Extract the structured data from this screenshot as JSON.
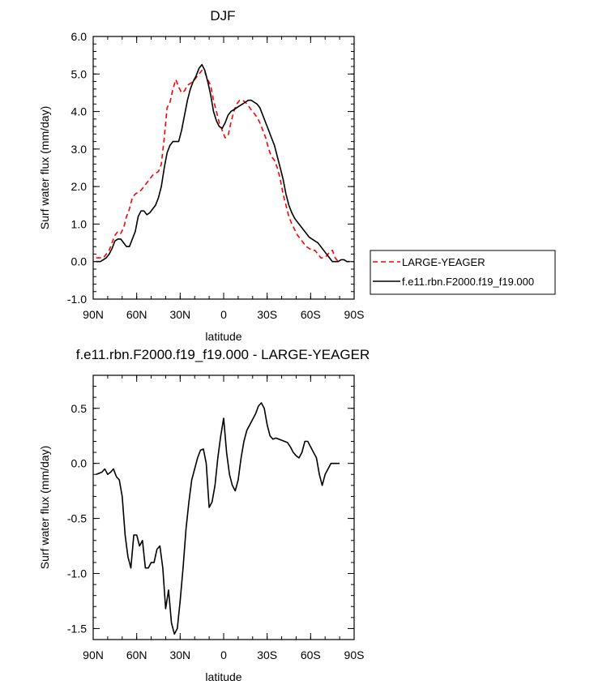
{
  "chart_data": [
    {
      "type": "line",
      "title": "DJF",
      "xlabel": "latitude",
      "ylabel": "Surf water flux (mm/day)",
      "xlim": [
        -90,
        90
      ],
      "ylim": [
        -1.0,
        6.0
      ],
      "x_ticks": [
        "90N",
        "60N",
        "30N",
        "0",
        "30S",
        "60S",
        "90S"
      ],
      "y_ticks": [
        "-1.0",
        "0.0",
        "1.0",
        "2.0",
        "3.0",
        "4.0",
        "5.0",
        "6.0"
      ],
      "legend_position": "right",
      "series": [
        {
          "name": "LARGE-YEAGER",
          "color": "#ff0000",
          "style": "dashed",
          "x": [
            -88,
            -85,
            -83,
            -81,
            -79,
            -77,
            -75,
            -73,
            -71,
            -69,
            -67,
            -65,
            -63,
            -61,
            -59,
            -57,
            -55,
            -53,
            -51,
            -49,
            -47,
            -45,
            -43,
            -41,
            -39,
            -37,
            -35,
            -33,
            -31,
            -29,
            -27,
            -25,
            -23,
            -21,
            -19,
            -17,
            -15,
            -13,
            -11,
            -9,
            -7,
            -5,
            -3,
            -1,
            1,
            3,
            5,
            7,
            9,
            11,
            13,
            15,
            17,
            19,
            21,
            23,
            25,
            27,
            29,
            31,
            33,
            35,
            37,
            39,
            41,
            43,
            45,
            47,
            49,
            51,
            53,
            55,
            57,
            59,
            61,
            63,
            65,
            67,
            69,
            71,
            73,
            75,
            77,
            79
          ],
          "y": [
            0.1,
            0.1,
            0.1,
            0.2,
            0.3,
            0.5,
            0.7,
            0.8,
            0.75,
            0.9,
            1.2,
            1.4,
            1.7,
            1.8,
            1.85,
            1.9,
            2.0,
            2.1,
            2.2,
            2.3,
            2.35,
            2.4,
            2.6,
            3.3,
            4.1,
            4.25,
            4.6,
            4.85,
            4.65,
            4.5,
            4.55,
            4.7,
            4.75,
            4.8,
            4.9,
            5.0,
            5.1,
            5.05,
            4.85,
            4.7,
            4.3,
            4.0,
            3.7,
            3.5,
            3.3,
            3.35,
            3.7,
            4.0,
            4.2,
            4.3,
            4.3,
            4.25,
            4.15,
            4.05,
            3.95,
            3.85,
            3.7,
            3.5,
            3.3,
            3.0,
            2.8,
            2.7,
            2.5,
            2.2,
            1.8,
            1.5,
            1.2,
            1.0,
            0.85,
            0.7,
            0.6,
            0.5,
            0.4,
            0.35,
            0.3,
            0.3,
            0.2,
            0.1,
            0.1,
            0.15,
            0.25,
            0.3,
            0.1,
            0.0
          ]
        },
        {
          "name": "f.e11.rbn.F2000.f19_f19.000",
          "color": "#000000",
          "style": "solid",
          "x": [
            -88,
            -85,
            -83,
            -81,
            -79,
            -77,
            -75,
            -73,
            -71,
            -69,
            -67,
            -65,
            -63,
            -61,
            -59,
            -57,
            -55,
            -53,
            -51,
            -49,
            -47,
            -45,
            -43,
            -41,
            -39,
            -37,
            -35,
            -33,
            -31,
            -29,
            -27,
            -25,
            -23,
            -21,
            -19,
            -17,
            -15,
            -13,
            -11,
            -9,
            -7,
            -5,
            -3,
            -1,
            1,
            3,
            5,
            7,
            9,
            11,
            13,
            15,
            17,
            19,
            21,
            23,
            25,
            27,
            29,
            31,
            33,
            35,
            37,
            39,
            41,
            43,
            45,
            47,
            49,
            51,
            53,
            55,
            57,
            59,
            61,
            63,
            65,
            67,
            69,
            71,
            73,
            75,
            77,
            79,
            81,
            83,
            85,
            87
          ],
          "y": [
            0.0,
            0.0,
            0.05,
            0.1,
            0.2,
            0.35,
            0.55,
            0.6,
            0.6,
            0.5,
            0.4,
            0.4,
            0.6,
            0.8,
            1.2,
            1.35,
            1.35,
            1.25,
            1.3,
            1.4,
            1.5,
            1.7,
            2.0,
            2.5,
            2.9,
            3.1,
            3.2,
            3.2,
            3.2,
            3.5,
            3.9,
            4.3,
            4.6,
            4.8,
            4.95,
            5.15,
            5.25,
            5.1,
            4.8,
            4.45,
            4.0,
            3.75,
            3.6,
            3.55,
            3.7,
            3.9,
            4.0,
            4.05,
            4.1,
            4.15,
            4.2,
            4.25,
            4.3,
            4.3,
            4.25,
            4.2,
            4.1,
            3.9,
            3.7,
            3.5,
            3.3,
            3.1,
            2.8,
            2.5,
            2.2,
            1.8,
            1.5,
            1.3,
            1.15,
            1.05,
            0.95,
            0.85,
            0.75,
            0.65,
            0.6,
            0.55,
            0.5,
            0.4,
            0.3,
            0.2,
            0.1,
            0.0,
            0.0,
            0.0,
            0.05,
            0.05,
            0.0,
            0.0
          ]
        }
      ]
    },
    {
      "type": "line",
      "title": "f.e11.rbn.F2000.f19_f19.000 - LARGE-YEAGER",
      "xlabel": "latitude",
      "ylabel": "Surf water flux (mm/day)",
      "xlim": [
        -90,
        90
      ],
      "ylim": [
        -1.6,
        0.8
      ],
      "x_ticks": [
        "90N",
        "60N",
        "30N",
        "0",
        "30S",
        "60S",
        "90S"
      ],
      "y_ticks": [
        "-1.5",
        "-1.0",
        "-0.5",
        "0.0",
        "0.5"
      ],
      "series": [
        {
          "color": "#000000",
          "style": "solid",
          "x": [
            -88,
            -86,
            -84,
            -82,
            -80,
            -78,
            -76,
            -74,
            -72,
            -70,
            -68,
            -66,
            -64,
            -62,
            -60,
            -58,
            -56,
            -54,
            -52,
            -50,
            -48,
            -46,
            -44,
            -42,
            -40,
            -38,
            -36,
            -34,
            -32,
            -30,
            -28,
            -26,
            -24,
            -22,
            -20,
            -18,
            -16,
            -14,
            -12,
            -10,
            -8,
            -6,
            -4,
            -2,
            0,
            2,
            4,
            6,
            8,
            10,
            12,
            14,
            16,
            18,
            20,
            22,
            24,
            26,
            28,
            30,
            32,
            34,
            36,
            38,
            40,
            42,
            44,
            46,
            48,
            50,
            52,
            54,
            56,
            58,
            60,
            62,
            64,
            66,
            68,
            70,
            72,
            74,
            76,
            78,
            80
          ],
          "y": [
            -0.1,
            -0.09,
            -0.08,
            -0.05,
            -0.1,
            -0.08,
            -0.05,
            -0.12,
            -0.15,
            -0.3,
            -0.65,
            -0.85,
            -0.95,
            -0.65,
            -0.65,
            -0.75,
            -0.7,
            -0.95,
            -0.95,
            -0.9,
            -0.9,
            -0.78,
            -0.75,
            -0.95,
            -1.32,
            -1.15,
            -1.45,
            -1.55,
            -1.5,
            -1.25,
            -0.95,
            -0.6,
            -0.35,
            -0.15,
            -0.05,
            0.05,
            0.12,
            0.13,
            0.0,
            -0.4,
            -0.35,
            -0.2,
            0.05,
            0.25,
            0.41,
            0.1,
            -0.1,
            -0.2,
            -0.25,
            -0.15,
            0.05,
            0.2,
            0.3,
            0.35,
            0.4,
            0.45,
            0.52,
            0.55,
            0.5,
            0.35,
            0.25,
            0.22,
            0.23,
            0.22,
            0.21,
            0.2,
            0.19,
            0.15,
            0.1,
            0.07,
            0.05,
            0.1,
            0.2,
            0.2,
            0.15,
            0.1,
            0.05,
            -0.1,
            -0.2,
            -0.1,
            -0.05,
            0.0,
            0.0,
            0.0,
            0.0
          ]
        }
      ]
    }
  ]
}
